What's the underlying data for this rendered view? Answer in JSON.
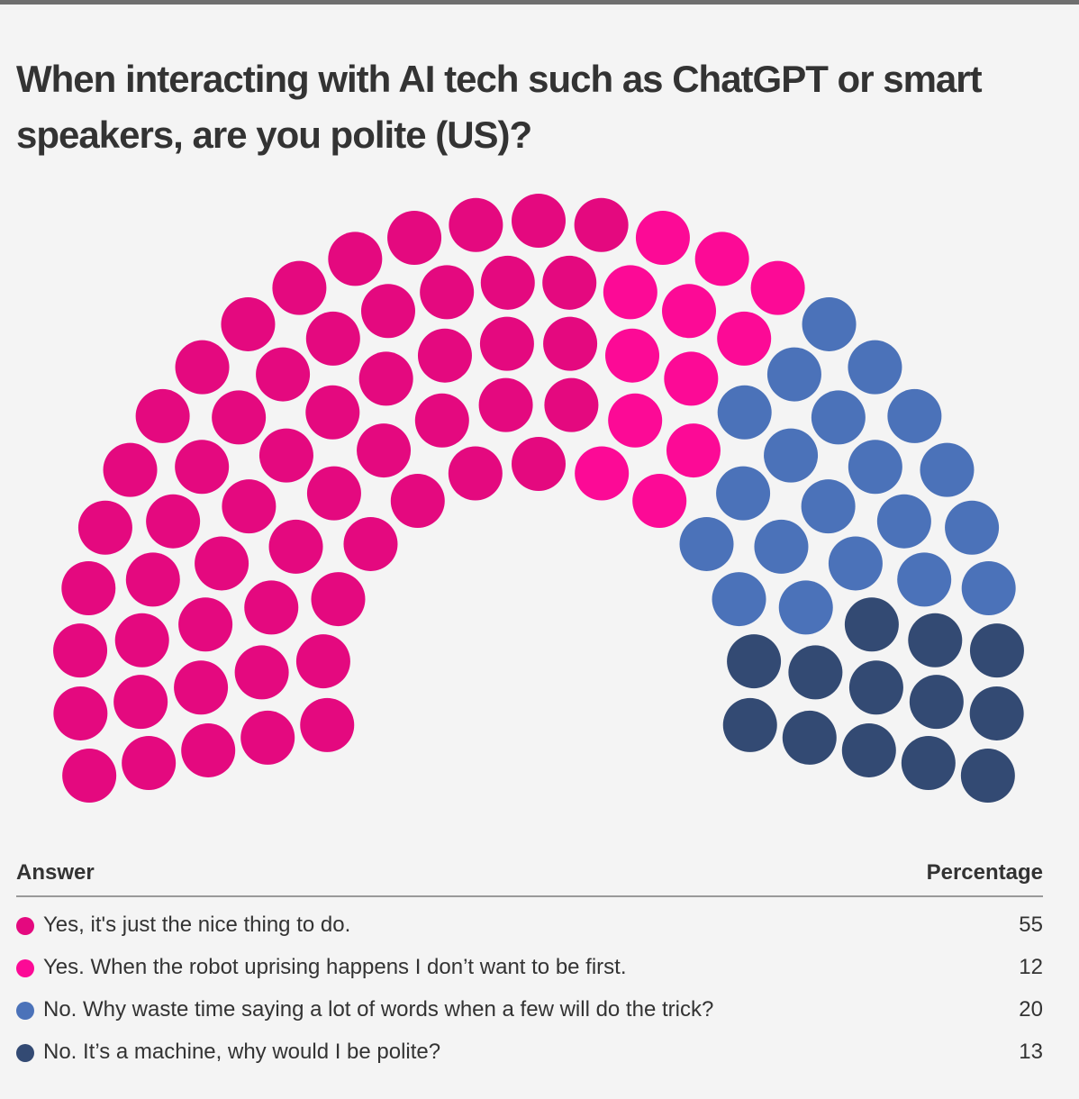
{
  "chart_data": {
    "type": "parliament",
    "title": "When interacting with AI tech such as ChatGPT or smart speakers, are you polite (US)?",
    "column_headers": [
      "Answer",
      "Percentage"
    ],
    "categories": [
      "Yes, it's just the nice thing to do.",
      "Yes. When the robot uprising happens I don’t want to be first.",
      "No. Why waste time saying a lot of words when a few will do the trick?",
      "No. It’s a machine, why would I be polite?"
    ],
    "values": [
      55,
      12,
      20,
      13
    ],
    "colors": [
      "#e4097f",
      "#fc0a96",
      "#4b72b9",
      "#334a73"
    ]
  }
}
